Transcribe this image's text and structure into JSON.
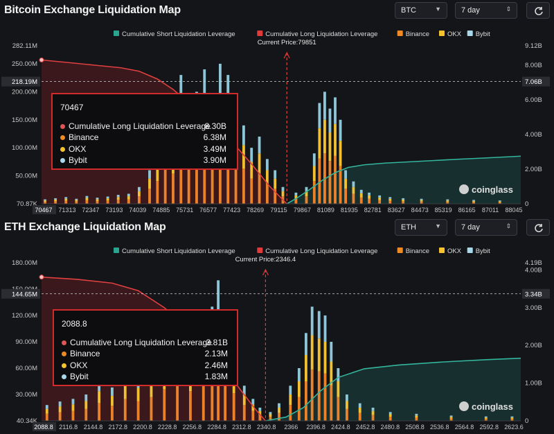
{
  "common": {
    "legend": [
      {
        "label": "Cumulative Short Liquidation Leverage",
        "color": "#2aa38f"
      },
      {
        "label": "Cumulative Long Liquidation Leverage",
        "color": "#e03a3a"
      },
      {
        "label": "Binance",
        "color": "#f08a24"
      },
      {
        "label": "OKX",
        "color": "#f6c22e"
      },
      {
        "label": "Bybit",
        "color": "#a8d8ea"
      }
    ],
    "logo": "coinglass",
    "icons": {
      "refresh": "refresh-icon",
      "chevron": "chevron-down-icon",
      "stepper": "up-down-stepper-icon"
    }
  },
  "btc": {
    "title": "Bitcoin Exchange Liquidation Map",
    "symbol": "BTC",
    "period": "7 day",
    "current_price_label": "Current Price:79851",
    "tooltip": {
      "header": "70467",
      "rows": [
        {
          "label": "Cumulative Long Liquidation Leverage",
          "value": "8.30B",
          "color": "#e05555"
        },
        {
          "label": "Binance",
          "value": "6.38M",
          "color": "#f08a24"
        },
        {
          "label": "OKX",
          "value": "3.49M",
          "color": "#f6c22e"
        },
        {
          "label": "Bybit",
          "value": "3.90M",
          "color": "#a8d8ea"
        }
      ]
    },
    "chart_data": {
      "type": "bar",
      "x_ticks": [
        "70467",
        "71313",
        "72347",
        "73193",
        "74039",
        "74885",
        "75731",
        "76577",
        "77423",
        "78269",
        "79115",
        "79867",
        "81089",
        "81935",
        "82781",
        "83627",
        "84473",
        "85319",
        "86165",
        "87011",
        "88045"
      ],
      "x_range": [
        70467,
        88800
      ],
      "current_price": 79851,
      "left_axis": {
        "ticks": [
          "282.11M",
          "250.00M",
          "200.00M",
          "150.00M",
          "100.00M",
          "50.00M",
          "70.87K"
        ],
        "values": [
          282110000,
          250000000,
          200000000,
          150000000,
          100000000,
          50000000,
          70870
        ],
        "ylim": [
          0,
          282110000
        ],
        "crosshair_label": "218.19M",
        "crosshair_value": 218190000
      },
      "right_axis": {
        "ticks": [
          "9.12B",
          "8.00B",
          "6.00B",
          "4.00B",
          "2.00B",
          "0"
        ],
        "values": [
          9120000000,
          8000000000,
          6000000000,
          4000000000,
          2000000000,
          0
        ],
        "ylim": [
          0,
          9120000000
        ],
        "crosshair_label": "7.06B"
      },
      "long_cumulative": [
        [
          70467,
          8.3
        ],
        [
          71500,
          8.15
        ],
        [
          72500,
          8.0
        ],
        [
          73500,
          7.85
        ],
        [
          74200,
          7.65
        ],
        [
          74900,
          7.2
        ],
        [
          75500,
          6.6
        ],
        [
          76200,
          5.7
        ],
        [
          77000,
          4.7
        ],
        [
          77800,
          3.5
        ],
        [
          78500,
          2.3
        ],
        [
          79200,
          1.0
        ],
        [
          79851,
          0.0
        ]
      ],
      "short_cumulative": [
        [
          79851,
          0.0
        ],
        [
          80200,
          0.3
        ],
        [
          80700,
          0.8
        ],
        [
          81200,
          1.35
        ],
        [
          81700,
          1.8
        ],
        [
          82200,
          2.1
        ],
        [
          82800,
          2.25
        ],
        [
          83600,
          2.35
        ],
        [
          84500,
          2.42
        ],
        [
          85500,
          2.5
        ],
        [
          86500,
          2.58
        ],
        [
          87500,
          2.65
        ],
        [
          88800,
          2.75
        ]
      ],
      "bars_total_by_price": [
        [
          70600,
          8
        ],
        [
          71000,
          10
        ],
        [
          71400,
          12
        ],
        [
          71800,
          9
        ],
        [
          72200,
          14
        ],
        [
          72600,
          11
        ],
        [
          73000,
          13
        ],
        [
          73400,
          16
        ],
        [
          73800,
          18
        ],
        [
          74200,
          30
        ],
        [
          74600,
          60
        ],
        [
          74900,
          90
        ],
        [
          75200,
          170
        ],
        [
          75500,
          120
        ],
        [
          75800,
          230
        ],
        [
          76100,
          150
        ],
        [
          76400,
          200
        ],
        [
          76700,
          240
        ],
        [
          77000,
          180
        ],
        [
          77300,
          250
        ],
        [
          77600,
          230
        ],
        [
          77900,
          160
        ],
        [
          78200,
          140
        ],
        [
          78500,
          100
        ],
        [
          78800,
          120
        ],
        [
          79100,
          80
        ],
        [
          79400,
          60
        ],
        [
          79700,
          30
        ],
        [
          80200,
          20
        ],
        [
          80600,
          30
        ],
        [
          80900,
          90
        ],
        [
          81100,
          180
        ],
        [
          81300,
          200
        ],
        [
          81500,
          170
        ],
        [
          81700,
          190
        ],
        [
          81900,
          150
        ],
        [
          82100,
          60
        ],
        [
          82400,
          40
        ],
        [
          82700,
          25
        ],
        [
          83000,
          20
        ],
        [
          83400,
          15
        ],
        [
          83800,
          12
        ],
        [
          84300,
          10
        ],
        [
          85000,
          9
        ],
        [
          86000,
          8
        ],
        [
          87000,
          7
        ],
        [
          88000,
          6
        ]
      ]
    }
  },
  "eth": {
    "title": "ETH Exchange Liquidation Map",
    "symbol": "ETH",
    "period": "7 day",
    "current_price_label": "Current Price:2346.4",
    "tooltip": {
      "header": "2088.8",
      "rows": [
        {
          "label": "Cumulative Long Liquidation Leverage",
          "value": "3.81B",
          "color": "#e05555"
        },
        {
          "label": "Binance",
          "value": "2.13M",
          "color": "#f08a24"
        },
        {
          "label": "OKX",
          "value": "2.46M",
          "color": "#f6c22e"
        },
        {
          "label": "Bybit",
          "value": "1.83M",
          "color": "#a8d8ea"
        }
      ]
    },
    "chart_data": {
      "type": "bar",
      "x_ticks": [
        "2088.8",
        "2116.8",
        "2144.8",
        "2172.8",
        "2200.8",
        "2228.8",
        "2256.8",
        "2284.8",
        "2312.8",
        "2340.8",
        "2366",
        "2396.8",
        "2424.8",
        "2452.8",
        "2480.8",
        "2508.8",
        "2536.8",
        "2564.8",
        "2592.8",
        "2623.6"
      ],
      "x_range": [
        2088.8,
        2640
      ],
      "current_price": 2346.4,
      "left_axis": {
        "ticks": [
          "180.00M",
          "150.00M",
          "120.00M",
          "90.00M",
          "60.00M",
          "30.00M",
          "40.34K"
        ],
        "values": [
          180000000,
          150000000,
          120000000,
          90000000,
          60000000,
          30000000,
          40340
        ],
        "ylim": [
          0,
          180000000
        ],
        "crosshair_label": "144.65M",
        "crosshair_value": 144650000
      },
      "right_axis": {
        "ticks": [
          "4.19B",
          "4.00B",
          "3.00B",
          "2.00B",
          "1.00B",
          "0"
        ],
        "values": [
          4190000000,
          4000000000,
          3000000000,
          2000000000,
          1000000000,
          0
        ],
        "ylim": [
          0,
          4190000000
        ],
        "crosshair_label": "3.34B"
      },
      "long_cumulative": [
        [
          2088.8,
          3.81
        ],
        [
          2130,
          3.75
        ],
        [
          2170,
          3.65
        ],
        [
          2200,
          3.45
        ],
        [
          2230,
          3.0
        ],
        [
          2260,
          2.4
        ],
        [
          2290,
          1.7
        ],
        [
          2315,
          0.9
        ],
        [
          2335,
          0.3
        ],
        [
          2346.4,
          0.0
        ]
      ],
      "short_cumulative": [
        [
          2346.4,
          0.0
        ],
        [
          2370,
          0.1
        ],
        [
          2390,
          0.35
        ],
        [
          2410,
          0.8
        ],
        [
          2430,
          1.15
        ],
        [
          2460,
          1.38
        ],
        [
          2500,
          1.48
        ],
        [
          2550,
          1.56
        ],
        [
          2600,
          1.62
        ],
        [
          2640,
          1.66
        ]
      ],
      "bars_total_by_price": [
        [
          2095,
          18
        ],
        [
          2110,
          22
        ],
        [
          2125,
          25
        ],
        [
          2140,
          30
        ],
        [
          2155,
          45
        ],
        [
          2170,
          38
        ],
        [
          2185,
          55
        ],
        [
          2200,
          50
        ],
        [
          2215,
          60
        ],
        [
          2230,
          80
        ],
        [
          2245,
          90
        ],
        [
          2260,
          75
        ],
        [
          2275,
          100
        ],
        [
          2285,
          130
        ],
        [
          2292,
          160
        ],
        [
          2300,
          110
        ],
        [
          2310,
          70
        ],
        [
          2322,
          40
        ],
        [
          2332,
          25
        ],
        [
          2340,
          15
        ],
        [
          2352,
          10
        ],
        [
          2362,
          20
        ],
        [
          2375,
          40
        ],
        [
          2385,
          60
        ],
        [
          2393,
          100
        ],
        [
          2400,
          130
        ],
        [
          2408,
          125
        ],
        [
          2415,
          120
        ],
        [
          2422,
          90
        ],
        [
          2430,
          60
        ],
        [
          2440,
          30
        ],
        [
          2455,
          20
        ],
        [
          2470,
          15
        ],
        [
          2490,
          10
        ],
        [
          2520,
          8
        ],
        [
          2560,
          6
        ],
        [
          2600,
          5
        ],
        [
          2630,
          5
        ]
      ]
    }
  }
}
